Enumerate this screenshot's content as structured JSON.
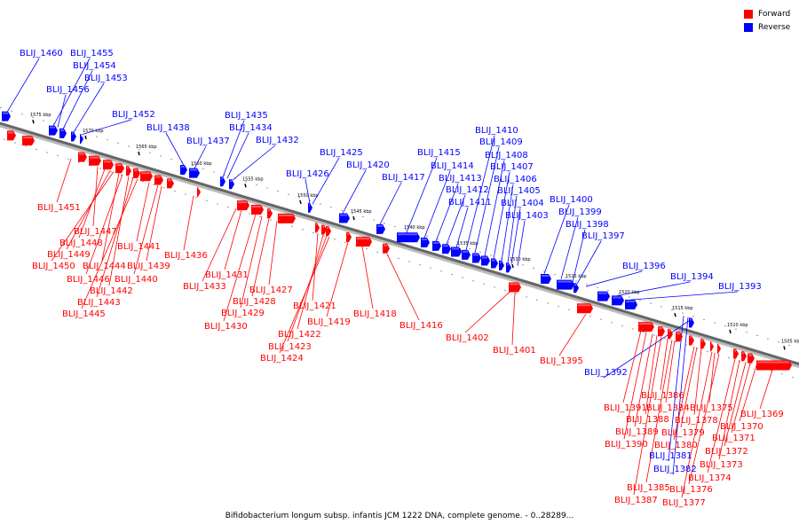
{
  "legend": {
    "forward_label": "Forward",
    "reverse_label": "Reverse",
    "forward_color": "#ff0000",
    "reverse_color": "#0000ff"
  },
  "caption": "Bifidobacterium longum subsp. infantis JCM 1222 DNA, complete genome. - 0..28289...",
  "axis": {
    "tick_labels": [
      "1575 kbp",
      "1570 kbp",
      "1565 kbp",
      "1560 kbp",
      "1555 kbp",
      "1550 kbp",
      "1545 kbp",
      "1540 kbp",
      "1535 kbp",
      "1530 kbp",
      "1525 kbp",
      "1520 kbp",
      "1515 kbp",
      "1510 kbp",
      "1505 kbp"
    ]
  },
  "genes": {
    "reverse": [
      "BLIJ_1460",
      "BLIJ_1455",
      "BLIJ_1454",
      "BLIJ_1453",
      "BLIJ_1456",
      "BLIJ_1452",
      "BLIJ_1438",
      "BLIJ_1437",
      "BLIJ_1435",
      "BLIJ_1434",
      "BLIJ_1432",
      "BLIJ_1426",
      "BLIJ_1425",
      "BLIJ_1420",
      "BLIJ_1417",
      "BLIJ_1415",
      "BLIJ_1414",
      "BLIJ_1413",
      "BLIJ_1412",
      "BLIJ_1411",
      "BLIJ_1410",
      "BLIJ_1409",
      "BLIJ_1408",
      "BLIJ_1407",
      "BLIJ_1406",
      "BLIJ_1405",
      "BLIJ_1404",
      "BLIJ_1403",
      "BLIJ_1400",
      "BLIJ_1399",
      "BLIJ_1398",
      "BLIJ_1397",
      "BLIJ_1396",
      "BLIJ_1394",
      "BLIJ_1393",
      "BLIJ_1392",
      "BLIJ_1381",
      "BLIJ_1382"
    ],
    "forward": [
      "BLIJ_1451",
      "BLIJ_1447",
      "BLIJ_1448",
      "BLIJ_1449",
      "BLIJ_1450",
      "BLIJ_1444",
      "BLIJ_1446",
      "BLIJ_1442",
      "BLIJ_1443",
      "BLIJ_1445",
      "BLIJ_1441",
      "BLIJ_1439",
      "BLIJ_1440",
      "BLIJ_1436",
      "BLIJ_1431",
      "BLIJ_1433",
      "BLIJ_1427",
      "BLIJ_1428",
      "BLIJ_1429",
      "BLIJ_1430",
      "BLIJ_1421",
      "BLIJ_1422",
      "BLIJ_1423",
      "BLIJ_1424",
      "BLIJ_1419",
      "BLIJ_1418",
      "BLIJ_1416",
      "BLIJ_1402",
      "BLIJ_1401",
      "BLIJ_1395",
      "BLIJ_1386",
      "BLIJ_1391",
      "BLIJ_1384",
      "BLIJ_1375",
      "BLIJ_1388",
      "BLIJ_1378",
      "BLIJ_1389",
      "BLIJ_1379",
      "BLIJ_1390",
      "BLIJ_1380",
      "BLIJ_1369",
      "BLIJ_1370",
      "BLIJ_1371",
      "BLIJ_1372",
      "BLIJ_1373",
      "BLIJ_1374",
      "BLIJ_1376",
      "BLIJ_1377",
      "BLIJ_1385",
      "BLIJ_1387"
    ]
  }
}
